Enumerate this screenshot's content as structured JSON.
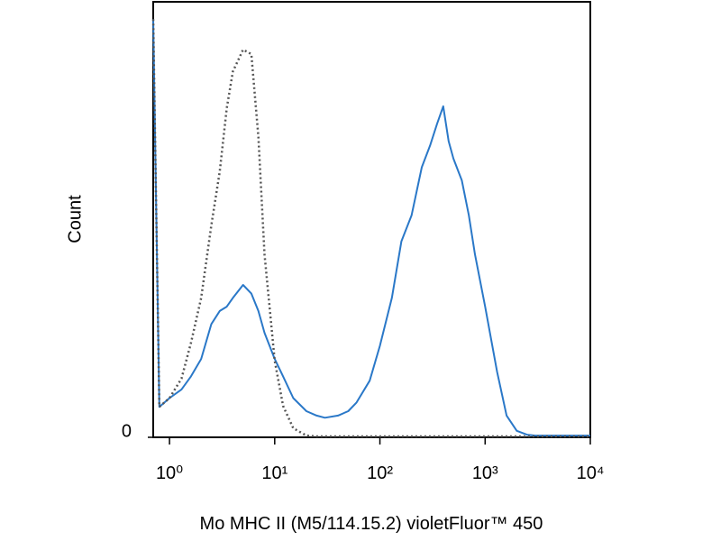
{
  "chart_data": {
    "type": "line",
    "x_label": "Mo MHC II (M5/114.15.2) violetFluor™ 450",
    "y_label": "Count",
    "xscale": "log",
    "x": [
      0.7,
      0.8,
      1,
      1.3,
      1.6,
      2,
      2.5,
      3,
      3.5,
      4,
      5,
      6,
      7,
      8,
      10,
      12,
      15,
      20,
      25,
      30,
      40,
      50,
      60,
      80,
      100,
      130,
      160,
      200,
      250,
      300,
      350,
      400,
      450,
      500,
      600,
      700,
      800,
      1000,
      1300,
      1600,
      2000,
      2500,
      3000,
      4000,
      6000,
      10000
    ],
    "series": [
      {
        "color": "#2a78c8",
        "dash": "solid",
        "values": [
          96,
          7,
          9,
          11,
          14,
          18,
          26,
          29,
          30,
          32,
          35,
          33,
          29,
          24,
          18,
          14,
          9,
          6,
          5,
          4.5,
          5,
          6,
          8,
          13,
          21,
          32,
          45,
          51,
          62,
          67,
          72,
          76,
          68,
          64,
          59,
          51,
          42,
          30,
          15,
          5,
          1.5,
          0.6,
          0.4,
          0.4,
          0.4,
          0.4
        ]
      },
      {
        "color": "#555555",
        "dash": "dotted",
        "values": [
          96,
          7,
          9,
          13.5,
          21.7,
          32,
          48.7,
          61,
          75.6,
          84,
          89,
          88,
          69,
          42,
          17.6,
          7.2,
          2.1,
          0.4,
          0.2,
          0.2,
          0.2,
          0.2,
          0.2,
          0.2,
          0.2,
          0.2,
          0.2,
          0.2,
          0.2,
          0.2,
          0.2,
          0.2,
          0.2,
          0.2,
          0.2,
          0.2,
          0.2,
          0.2,
          0.2,
          0.2,
          0.2,
          0.2,
          0.2,
          0.2,
          0.2,
          0.2
        ]
      }
    ],
    "xlim": [
      0.7,
      10000
    ],
    "ylim": [
      0,
      100
    ],
    "xticks": [
      {
        "value": 1,
        "label": "10⁰"
      },
      {
        "value": 10,
        "label": "10¹"
      },
      {
        "value": 100,
        "label": "10²"
      },
      {
        "value": 1000,
        "label": "10³"
      },
      {
        "value": 10000,
        "label": "10⁴"
      }
    ],
    "yticks": [
      0
    ],
    "grid": false
  }
}
